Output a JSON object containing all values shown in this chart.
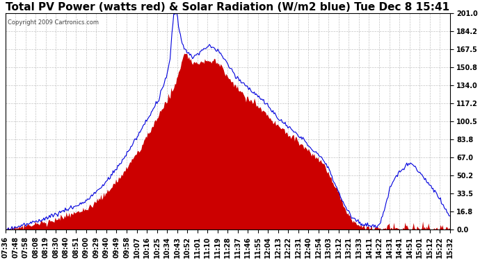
{
  "title": "Total PV Power (watts red) & Solar Radiation (W/m2 blue) Tue Dec 8 15:41",
  "copyright": "Copyright 2009 Cartronics.com",
  "yticks": [
    0.0,
    16.8,
    33.5,
    50.2,
    67.0,
    83.8,
    100.5,
    117.2,
    134.0,
    150.8,
    167.5,
    184.2,
    201.0
  ],
  "ymax": 201.0,
  "ymin": 0.0,
  "xtick_labels": [
    "07:36",
    "07:48",
    "07:58",
    "08:08",
    "08:19",
    "08:30",
    "08:40",
    "08:51",
    "09:00",
    "09:29",
    "09:40",
    "09:49",
    "09:58",
    "10:07",
    "10:16",
    "10:25",
    "10:34",
    "10:43",
    "10:52",
    "11:01",
    "11:10",
    "11:19",
    "11:28",
    "11:37",
    "11:46",
    "11:55",
    "12:04",
    "12:13",
    "12:22",
    "12:31",
    "12:40",
    "12:54",
    "13:03",
    "13:12",
    "13:21",
    "13:33",
    "14:11",
    "14:22",
    "14:31",
    "14:41",
    "14:51",
    "15:01",
    "15:12",
    "15:22",
    "15:32"
  ],
  "bg_color": "#ffffff",
  "grid_color": "#aaaaaa",
  "red_color": "#cc0000",
  "blue_color": "#0000dd",
  "title_fontsize": 11,
  "tick_fontsize": 7,
  "figsize": [
    6.9,
    3.75
  ],
  "dpi": 100
}
